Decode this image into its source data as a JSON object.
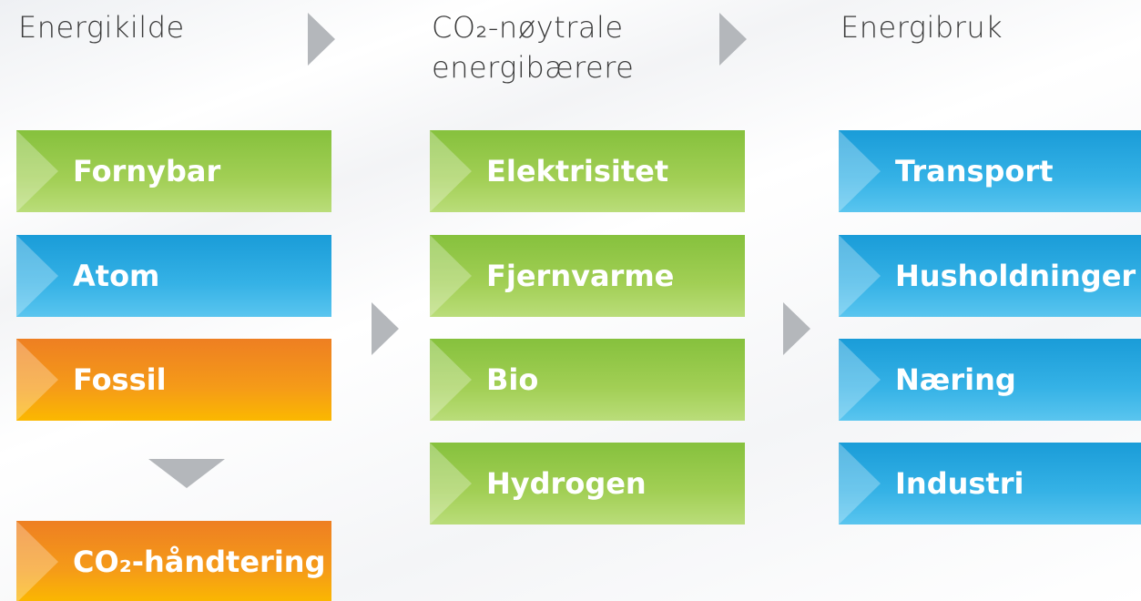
{
  "columns": [
    {
      "header": "Energikilde",
      "items": [
        "Fornybar",
        "Atom",
        "Fossil",
        "CO₂-håndtering"
      ]
    },
    {
      "header": "CO₂-nøytrale energibærere",
      "items": [
        "Elektrisitet",
        "Fjernvarme",
        "Bio",
        "Hydrogen"
      ]
    },
    {
      "header": "Energibruk",
      "items": [
        "Transport",
        "Husholdninger",
        "Næring",
        "Industri"
      ]
    }
  ]
}
